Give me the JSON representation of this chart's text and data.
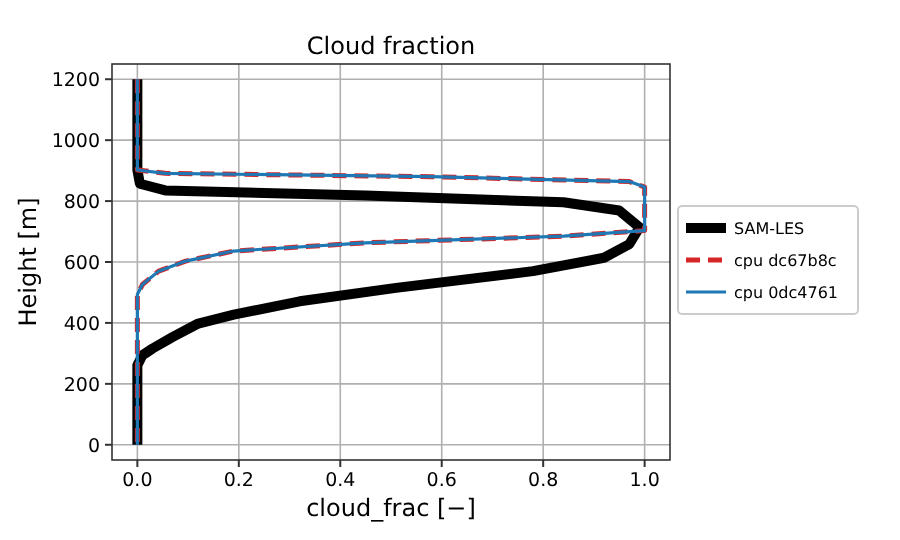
{
  "chart_data": {
    "type": "line",
    "title": "Cloud fraction",
    "xlabel": "cloud_frac [−]",
    "ylabel": "Height [m]",
    "xlim": [
      -0.05,
      1.05
    ],
    "xticks": [
      {
        "value": 0,
        "label": "0.0"
      },
      {
        "value": 0.2,
        "label": "0.2"
      },
      {
        "value": 0.4,
        "label": "0.4"
      },
      {
        "value": 0.6,
        "label": "0.6"
      },
      {
        "value": 0.8,
        "label": "0.8"
      },
      {
        "value": 1,
        "label": "1.0"
      }
    ],
    "ylim": [
      -50,
      1250
    ],
    "yticks": [
      0,
      200,
      400,
      600,
      800,
      1000,
      1200
    ],
    "grid": true,
    "legend": "right",
    "series": [
      {
        "name": "SAM-LES",
        "color": "#000000",
        "line_style": "solid",
        "x": [
          0,
          0,
          0.005,
          0.055,
          0.45,
          0.84,
          0.95,
          0.99,
          0.97,
          0.92,
          0.78,
          0.51,
          0.32,
          0.19,
          0.12,
          0.07,
          0.03,
          0.01,
          0,
          0
        ],
        "values": [
          1200,
          902,
          857,
          835,
          818,
          796,
          769,
          714,
          659,
          614,
          570,
          515,
          471,
          427,
          398,
          354,
          316,
          294,
          261,
          0
        ]
      },
      {
        "name": "cpu dc67b8c",
        "color": "#d62728",
        "line_style": "dashed",
        "x": [
          0,
          0,
          0.055,
          0.58,
          0.97,
          1,
          1,
          0.84,
          0.45,
          0.19,
          0.095,
          0.042,
          0.01,
          0,
          0
        ],
        "values": [
          1200,
          902,
          891,
          880,
          864,
          846,
          703,
          685,
          663,
          636,
          603,
          570,
          526,
          493,
          0
        ]
      },
      {
        "name": "cpu 0dc4761",
        "color": "#1f77b4",
        "line_style": "solid",
        "x": [
          0,
          0,
          0.055,
          0.58,
          0.97,
          1,
          1,
          0.84,
          0.45,
          0.19,
          0.095,
          0.042,
          0.01,
          0,
          0
        ],
        "values": [
          1200,
          902,
          891,
          880,
          864,
          846,
          703,
          685,
          663,
          636,
          603,
          570,
          526,
          493,
          0
        ]
      }
    ]
  }
}
